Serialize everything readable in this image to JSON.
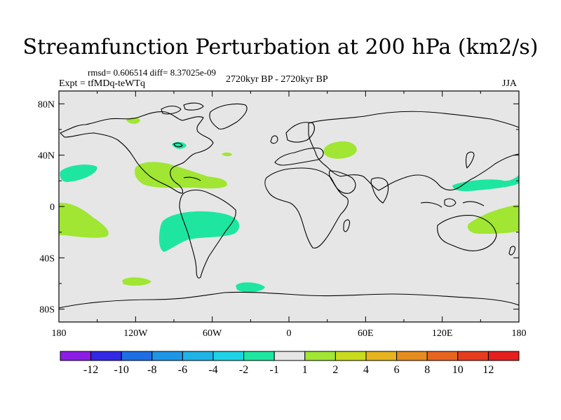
{
  "title": "Streamfunction Perturbation at 200 hPa (km2/s)",
  "stats_line": "rmsd= 0.606514 diff= 8.37025e-09",
  "experiment": "Expt = tfMDq-teWTq",
  "period": "2720kyr BP - 2720kyr BP",
  "season": "JJA",
  "map": {
    "lat_ticks": [
      "80N",
      "40N",
      "0",
      "40S",
      "80S"
    ],
    "lat_values": [
      80,
      40,
      0,
      -40,
      -80
    ],
    "lon_ticks": [
      "180",
      "120W",
      "60W",
      "0",
      "60E",
      "120E",
      "180"
    ],
    "lon_values": [
      -180,
      -120,
      -60,
      0,
      60,
      120,
      180
    ],
    "background_color": "#e6e6e6",
    "anomalies": [
      {
        "name": "N Atlantic positive",
        "sign": "positive",
        "level": "1-2",
        "color": "#a0e632"
      },
      {
        "name": "Central America positive",
        "sign": "positive",
        "level": "1-2",
        "color": "#a0e632"
      },
      {
        "name": "E Pacific positive",
        "sign": "positive",
        "level": "1-2",
        "color": "#a0e632"
      },
      {
        "name": "Caspian positive",
        "sign": "positive",
        "level": "1-2",
        "color": "#a0e632"
      },
      {
        "name": "Australia positive",
        "sign": "positive",
        "level": "1-2",
        "color": "#a0e632"
      },
      {
        "name": "S Pacific positive",
        "sign": "positive",
        "level": "1-2",
        "color": "#a0e632"
      },
      {
        "name": "N Pacific negative",
        "sign": "negative",
        "level": "-2 to -1",
        "color": "#1ee6a0"
      },
      {
        "name": "S Atlantic negative",
        "sign": "negative",
        "level": "-2 to -1",
        "color": "#1ee6a0"
      },
      {
        "name": "Southern Ocean negative",
        "sign": "negative",
        "level": "-2 to -1",
        "color": "#1ee6a0"
      },
      {
        "name": "W Pacific negative",
        "sign": "negative",
        "level": "-2 to -1",
        "color": "#1ee6a0"
      }
    ]
  },
  "colorbar": {
    "labels": [
      "-12",
      "-10",
      "-8",
      "-6",
      "-4",
      "-2",
      "-1",
      "1",
      "2",
      "4",
      "6",
      "8",
      "10",
      "12"
    ],
    "colors": [
      "#8c1ee6",
      "#3228e6",
      "#1e6ee6",
      "#1e96e6",
      "#1eb4e6",
      "#1ed2e6",
      "#1ee6a0",
      "#e6e6e6",
      "#a0e632",
      "#c8dc1e",
      "#e6b41e",
      "#e68c1e",
      "#e6641e",
      "#e63c1e",
      "#e61e1e"
    ]
  }
}
